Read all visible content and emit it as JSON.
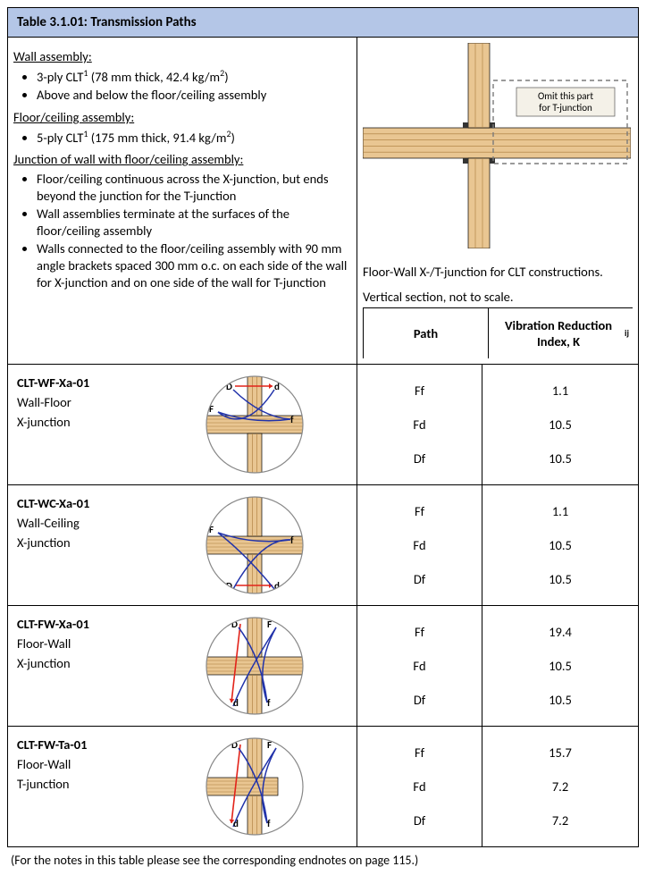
{
  "title": "Table 3.1.01: Transmission Paths",
  "top": {
    "wall_head": "Wall assembly:",
    "wall_items": [
      "3-ply CLT<sup>1</sup> (78 mm thick, 42.4 kg/m<sup>2</sup>)",
      "Above and below the floor/ceiling assembly"
    ],
    "floor_head": "Floor/ceiling assembly:",
    "floor_items": [
      "5-ply CLT<sup>1</sup> (175 mm thick, 91.4 kg/m<sup>2</sup>)"
    ],
    "junction_head": "Junction of wall with floor/ceiling assembly:",
    "junction_items": [
      "Floor/ceiling continuous across the X-junction, but ends beyond the junction for the T-junction",
      "Wall assemblies terminate at the surfaces of the floor/ceiling assembly",
      "Walls connected to the floor/ceiling assembly with 90 mm angle brackets spaced 300 mm o.c. on each side of the wall for X-junction and on one side of the wall for T-junction"
    ],
    "omit_label": "Omit this part\nfor T-junction",
    "caption1": "Floor-Wall X-/T-junction for CLT constructions.",
    "caption2": "Vertical section, not to scale."
  },
  "headers": {
    "path": "Path",
    "k": "Vibration Reduction Index, K<sub>ij</sub>"
  },
  "rows": [
    {
      "code": "CLT-WF-Xa-01",
      "desc1": "Wall-Floor",
      "desc2": "X-junction",
      "labels": {
        "D_pos": "tl",
        "d_pos": "tr",
        "F_pos": "ml",
        "f_pos": "mr",
        "show_right": true
      },
      "paths": [
        "Ff",
        "Fd",
        "Df"
      ],
      "k": [
        "1.1",
        "10.5",
        "10.5"
      ]
    },
    {
      "code": "CLT-WC-Xa-01",
      "desc1": "Wall-Ceiling",
      "desc2": "X-junction",
      "labels": {
        "D_pos": "bl",
        "d_pos": "br",
        "F_pos": "ml",
        "f_pos": "mr",
        "show_right": true
      },
      "paths": [
        "Ff",
        "Fd",
        "Df"
      ],
      "k": [
        "1.1",
        "10.5",
        "10.5"
      ]
    },
    {
      "code": "CLT-FW-Xa-01",
      "desc1": "Floor-Wall",
      "desc2": "X-junction",
      "labels": {
        "D_pos": "tc",
        "d_pos": "bc_l",
        "F_pos": "tc_r",
        "f_pos": "bc_r",
        "show_right": true
      },
      "paths": [
        "Ff",
        "Fd",
        "Df"
      ],
      "k": [
        "19.4",
        "10.5",
        "10.5"
      ]
    },
    {
      "code": "CLT-FW-Ta-01",
      "desc1": "Floor-Wall",
      "desc2": "T-junction",
      "labels": {
        "D_pos": "tc",
        "d_pos": "bc_l",
        "F_pos": "tc_r",
        "f_pos": "bc_r",
        "show_right": false
      },
      "paths": [
        "Ff",
        "Fd",
        "Df"
      ],
      "k": [
        "15.7",
        "7.2",
        "7.2"
      ]
    }
  ],
  "footnote": "(For the notes in this table please see the corresponding endnotes on page 115.)",
  "colors": {
    "clt_light": "#e9c692",
    "clt_mid": "#d9a95f",
    "clt_dark": "#a97b3a",
    "line": "#000000",
    "arrow_red": "#e2231a",
    "arrow_blue": "#2233aa",
    "dash": "#7a7a7a"
  }
}
